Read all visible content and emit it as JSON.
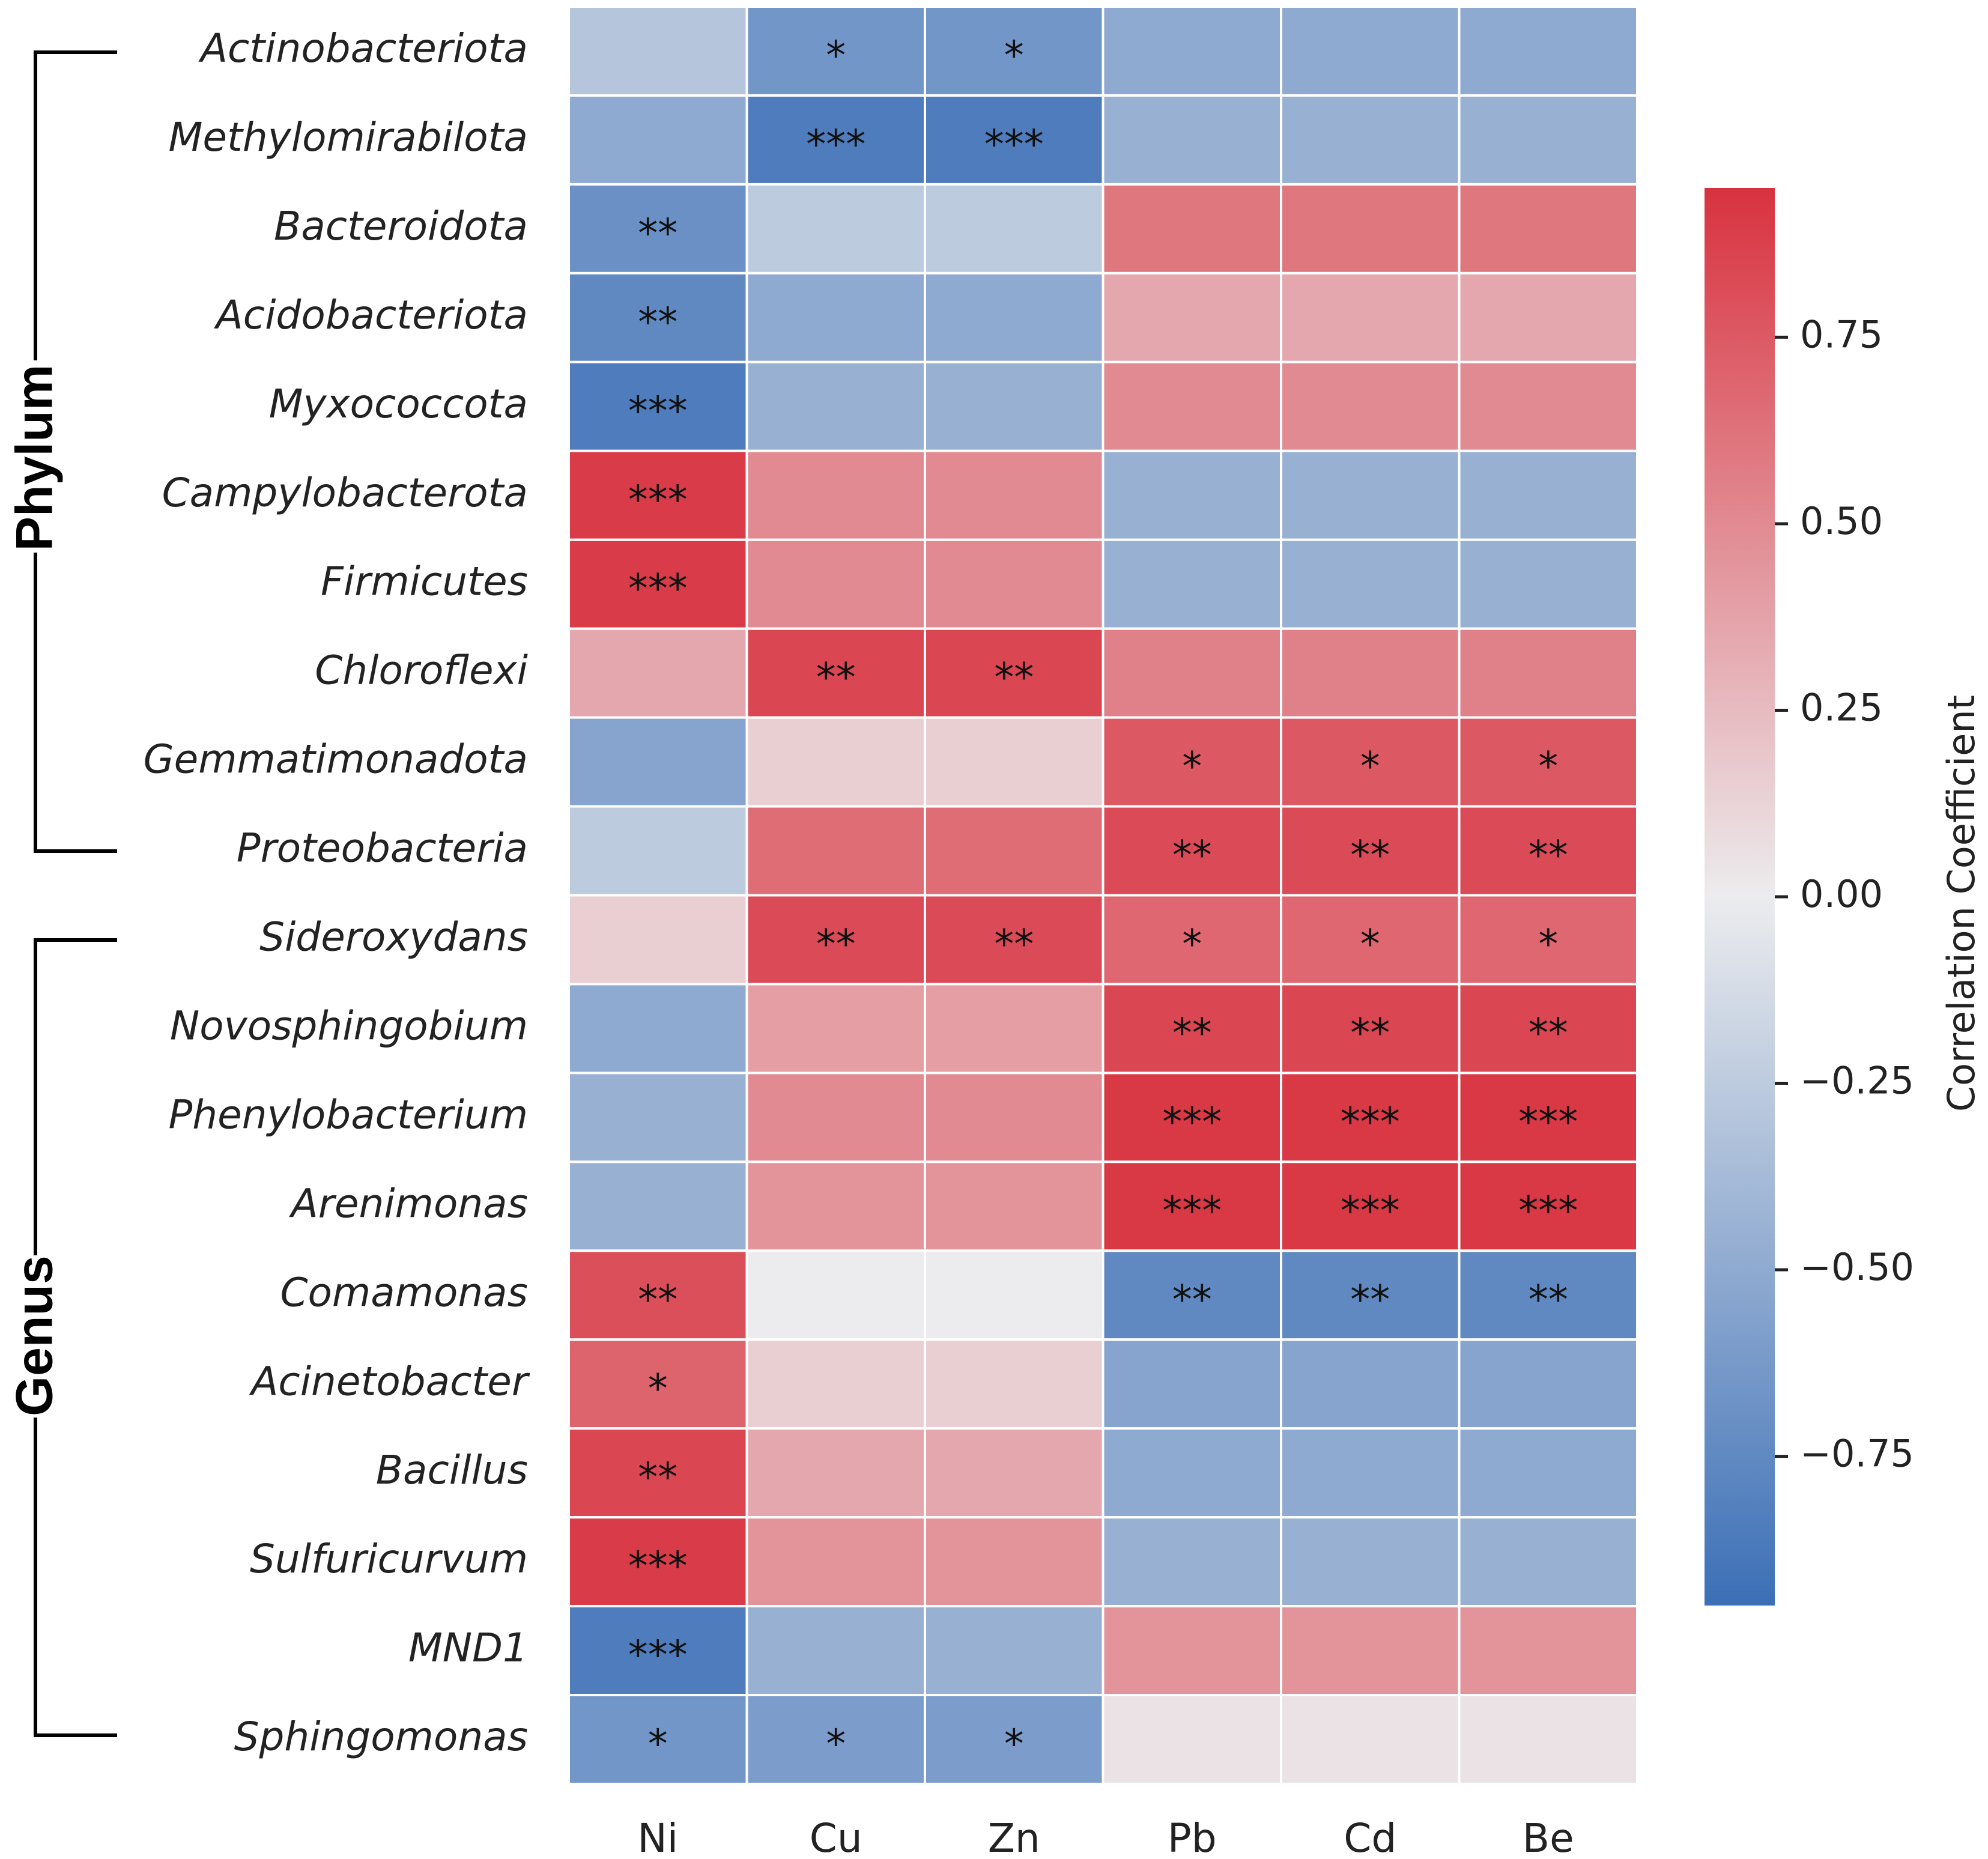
{
  "chart_data": {
    "type": "heatmap",
    "columns": [
      "Ni",
      "Cu",
      "Zn",
      "Pb",
      "Cd",
      "Be"
    ],
    "rows": [
      "Actinobacteriota",
      "Methylomirabilota",
      "Bacteroidota",
      "Acidobacteriota",
      "Myxococcota",
      "Campylobacterota",
      "Firmicutes",
      "Chloroflexi",
      "Gemmatimonadota",
      "Proteobacteria",
      "Sideroxydans",
      "Novosphingobium",
      "Phenylobacterium",
      "Arenimonas",
      "Comamonas",
      "Acinetobacter",
      "Bacillus",
      "Sulfuricurvum",
      "MND1",
      "Sphingomonas"
    ],
    "group_labels": [
      "Phylum",
      "Genus"
    ],
    "values": [
      [
        -0.3,
        -0.65,
        -0.65,
        -0.5,
        -0.5,
        -0.5
      ],
      [
        -0.5,
        -0.85,
        -0.85,
        -0.45,
        -0.45,
        -0.45
      ],
      [
        -0.7,
        -0.25,
        -0.25,
        0.6,
        0.6,
        0.6
      ],
      [
        -0.75,
        -0.5,
        -0.5,
        0.35,
        0.35,
        0.35
      ],
      [
        -0.85,
        -0.45,
        -0.45,
        0.5,
        0.5,
        0.5
      ],
      [
        0.9,
        0.5,
        0.5,
        -0.45,
        -0.45,
        -0.45
      ],
      [
        0.9,
        0.5,
        0.5,
        -0.45,
        -0.45,
        -0.45
      ],
      [
        0.35,
        0.85,
        0.85,
        0.55,
        0.55,
        0.55
      ],
      [
        -0.55,
        0.15,
        0.15,
        0.75,
        0.75,
        0.75
      ],
      [
        -0.25,
        0.65,
        0.65,
        0.82,
        0.82,
        0.82
      ],
      [
        0.15,
        0.82,
        0.82,
        0.68,
        0.68,
        0.68
      ],
      [
        -0.5,
        0.4,
        0.4,
        0.85,
        0.85,
        0.85
      ],
      [
        -0.45,
        0.5,
        0.5,
        0.92,
        0.92,
        0.92
      ],
      [
        -0.45,
        0.45,
        0.45,
        0.92,
        0.92,
        0.92
      ],
      [
        0.8,
        0.0,
        0.0,
        -0.75,
        -0.75,
        -0.75
      ],
      [
        0.7,
        0.15,
        0.15,
        -0.55,
        -0.55,
        -0.55
      ],
      [
        0.85,
        0.35,
        0.35,
        -0.5,
        -0.5,
        -0.5
      ],
      [
        0.9,
        0.45,
        0.45,
        -0.45,
        -0.45,
        -0.45
      ],
      [
        -0.85,
        -0.45,
        -0.45,
        0.45,
        0.45,
        0.45
      ],
      [
        -0.65,
        -0.6,
        -0.6,
        0.05,
        0.05,
        0.05
      ]
    ],
    "annotations": [
      [
        null,
        "*",
        "*",
        null,
        null,
        null
      ],
      [
        null,
        "***",
        "***",
        null,
        null,
        null
      ],
      [
        "**",
        null,
        null,
        null,
        null,
        null
      ],
      [
        "**",
        null,
        null,
        null,
        null,
        null
      ],
      [
        "***",
        null,
        null,
        null,
        null,
        null
      ],
      [
        "***",
        null,
        null,
        null,
        null,
        null
      ],
      [
        "***",
        null,
        null,
        null,
        null,
        null
      ],
      [
        null,
        "**",
        "**",
        null,
        null,
        null
      ],
      [
        null,
        null,
        null,
        "*",
        "*",
        "*"
      ],
      [
        null,
        null,
        null,
        "**",
        "**",
        "**"
      ],
      [
        null,
        "**",
        "**",
        "*",
        "*",
        "*"
      ],
      [
        null,
        null,
        null,
        "**",
        "**",
        "**"
      ],
      [
        null,
        null,
        null,
        "***",
        "***",
        "***"
      ],
      [
        null,
        null,
        null,
        "***",
        "***",
        "***"
      ],
      [
        "**",
        null,
        null,
        "**",
        "**",
        "**"
      ],
      [
        "*",
        null,
        null,
        null,
        null,
        null
      ],
      [
        "**",
        null,
        null,
        null,
        null,
        null
      ],
      [
        "***",
        null,
        null,
        null,
        null,
        null
      ],
      [
        "***",
        null,
        null,
        null,
        null,
        null
      ],
      [
        "*",
        "*",
        "*",
        null,
        null,
        null
      ]
    ],
    "colormap": [
      "#3b6fb6",
      "#ececee",
      "#d8323f"
    ],
    "zlim": [
      -0.95,
      0.95
    ],
    "zticks": [
      {
        "value": -0.75,
        "label": "−0.75"
      },
      {
        "value": -0.5,
        "label": "−0.50"
      },
      {
        "value": -0.25,
        "label": "−0.25"
      },
      {
        "value": 0,
        "label": "0.00"
      },
      {
        "value": 0.25,
        "label": "0.25"
      },
      {
        "value": 0.5,
        "label": "0.50"
      },
      {
        "value": 0.75,
        "label": "0.75"
      }
    ],
    "colorbar_label": "Correlation Coefficient"
  }
}
